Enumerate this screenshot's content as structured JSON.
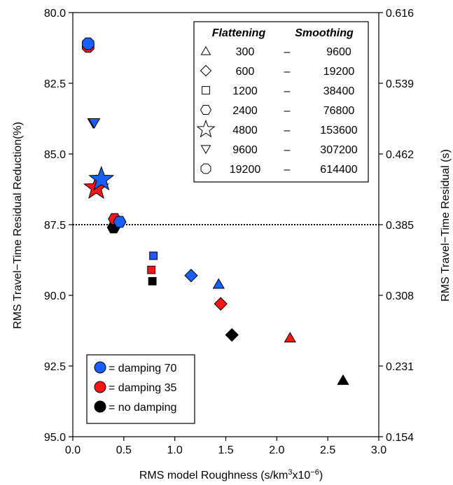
{
  "chart_data": {
    "type": "scatter",
    "xlabel": "RMS model Roughness (s/km",
    "xlabel_sup": "3",
    "xlabel_mid": "x10",
    "xlabel_sup2": "−6",
    "xlabel_end": ")",
    "ylabel": "RMS Travel−Time Residual Reduction(%)",
    "ylabel_right": "RMS Travel−Time Residual (s)",
    "xlim": [
      0.0,
      3.0
    ],
    "ylim": [
      80.0,
      95.0
    ],
    "y_inverted": true,
    "x_ticks": [
      "0.0",
      "0.5",
      "1.0",
      "1.5",
      "2.0",
      "2.5",
      "3.0"
    ],
    "y_ticks": [
      "80.0",
      "82.5",
      "85.0",
      "87.5",
      "90.0",
      "92.5",
      "95.0"
    ],
    "y_right_ticks": [
      "0.616",
      "0.539",
      "0.462",
      "0.385",
      "0.308",
      "0.231",
      "0.154"
    ],
    "reference_line_y": 87.5,
    "colors": {
      "damping 70": "#1560ff",
      "damping 35": "#ff1515",
      "no damping": "#000000"
    },
    "table_headers": [
      "Flattening",
      "Smoothing"
    ],
    "parameter_table": [
      {
        "marker": "triangle",
        "flattening": "300",
        "dash": "–",
        "smoothing": "9600"
      },
      {
        "marker": "diamond",
        "flattening": "600",
        "dash": "–",
        "smoothing": "19200"
      },
      {
        "marker": "square",
        "flattening": "1200",
        "dash": "–",
        "smoothing": "38400"
      },
      {
        "marker": "hexagon",
        "flattening": "2400",
        "dash": "–",
        "smoothing": "76800"
      },
      {
        "marker": "star",
        "flattening": "4800",
        "dash": "–",
        "smoothing": "153600"
      },
      {
        "marker": "triangle-down",
        "flattening": "9600",
        "dash": "–",
        "smoothing": "307200"
      },
      {
        "marker": "octagon",
        "flattening": "19200",
        "dash": "–",
        "smoothing": "614400"
      }
    ],
    "color_legend": [
      {
        "color": "#1560ff",
        "label": "= damping 70"
      },
      {
        "color": "#ff1515",
        "label": "= damping 35"
      },
      {
        "color": "#000000",
        "label": "= no damping"
      }
    ],
    "series": [
      {
        "name": "no damping",
        "color": "#000000",
        "points": [
          {
            "marker": "triangle",
            "x": 2.65,
            "y": 93.0
          },
          {
            "marker": "diamond",
            "x": 1.56,
            "y": 91.4
          },
          {
            "marker": "square",
            "x": 0.78,
            "y": 89.5
          },
          {
            "marker": "hexagon",
            "x": 0.4,
            "y": 87.6
          }
        ]
      },
      {
        "name": "damping 35",
        "color": "#ff1515",
        "points": [
          {
            "marker": "triangle",
            "x": 2.13,
            "y": 91.5
          },
          {
            "marker": "diamond",
            "x": 1.45,
            "y": 90.3
          },
          {
            "marker": "square",
            "x": 0.77,
            "y": 89.1
          },
          {
            "marker": "hexagon",
            "x": 0.41,
            "y": 87.3
          },
          {
            "marker": "star",
            "x": 0.23,
            "y": 86.2
          },
          {
            "marker": "triangle-down",
            "x": 0.2,
            "y": 83.9
          },
          {
            "marker": "octagon",
            "x": 0.15,
            "y": 81.2
          }
        ]
      },
      {
        "name": "damping 70",
        "color": "#1560ff",
        "points": [
          {
            "marker": "triangle",
            "x": 1.43,
            "y": 89.6
          },
          {
            "marker": "diamond",
            "x": 1.16,
            "y": 89.3
          },
          {
            "marker": "square",
            "x": 0.79,
            "y": 88.6
          },
          {
            "marker": "hexagon",
            "x": 0.46,
            "y": 87.4
          },
          {
            "marker": "star",
            "x": 0.28,
            "y": 85.9
          },
          {
            "marker": "triangle-down",
            "x": 0.21,
            "y": 83.9
          },
          {
            "marker": "octagon",
            "x": 0.15,
            "y": 81.1
          }
        ]
      }
    ]
  }
}
